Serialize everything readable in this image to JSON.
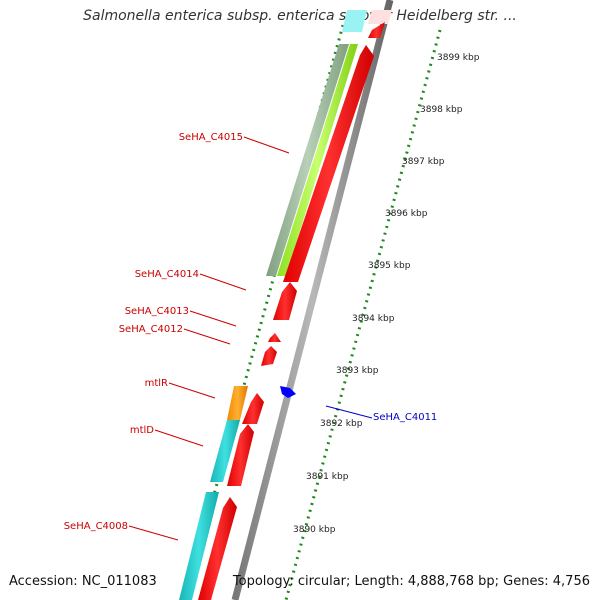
{
  "map": {
    "title": "Salmonella enterica subsp. enterica serovar Heidelberg str. ...",
    "accession": "Accession: NC_011083",
    "topology": "Topology: circular; Length: 4,888,768 bp; Genes: 4,756"
  },
  "ruler_ticks": [
    {
      "label": "3899 kbp"
    },
    {
      "label": "3898 kbp"
    },
    {
      "label": "3897 kbp"
    },
    {
      "label": "3896 kbp"
    },
    {
      "label": "3895 kbp"
    },
    {
      "label": "3894 kbp"
    },
    {
      "label": "3893 kbp"
    },
    {
      "label": "3892 kbp"
    },
    {
      "label": "3891 kbp"
    },
    {
      "label": "3890 kbp"
    }
  ],
  "gene_labels": [
    {
      "name": "SeHA_C4015",
      "color": "#cc0000"
    },
    {
      "name": "SeHA_C4014",
      "color": "#cc0000"
    },
    {
      "name": "SeHA_C4013",
      "color": "#cc0000"
    },
    {
      "name": "SeHA_C4012",
      "color": "#cc0000"
    },
    {
      "name": "mtlR",
      "color": "#cc0000"
    },
    {
      "name": "mtlD",
      "color": "#cc0000"
    },
    {
      "name": "SeHA_C4008",
      "color": "#cc0000"
    },
    {
      "name": "SeHA_C4011",
      "color": "#0000cc"
    }
  ],
  "colors": {
    "cds_forward": "#ff0000",
    "cds_reverse": "#0000ff",
    "teal_feature": "#22c5c5",
    "orange_feature": "#ff9900",
    "lime_feature": "#aaf03c",
    "gray_feature": "#99b899",
    "backbone": "#888888",
    "ticks": "#228822"
  }
}
